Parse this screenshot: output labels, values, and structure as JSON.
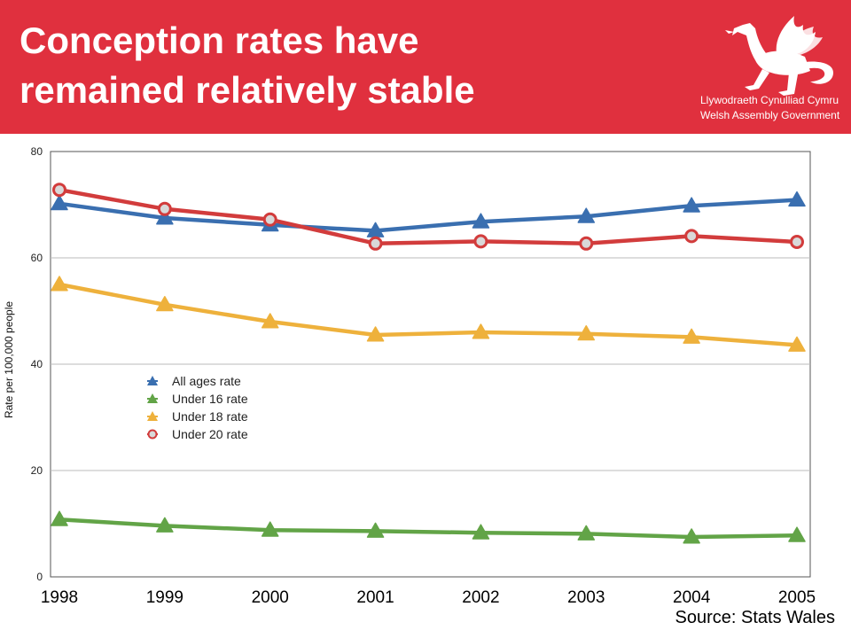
{
  "slide": {
    "title_line1": "Conception rates have",
    "title_line2": "remained relatively stable",
    "source": "Source: Stats Wales",
    "banner_color": "#e0303e"
  },
  "logo": {
    "line1": "Llywodraeth Cynulliad Cymru",
    "line2": "Welsh Assembly Government",
    "icon": "welsh-dragon-icon"
  },
  "chart_data": {
    "type": "line",
    "title": "",
    "xlabel": "",
    "ylabel": "Rate per 100,000 people",
    "categories": [
      "1998",
      "1999",
      "2000",
      "2001",
      "2002",
      "2003",
      "2004",
      "2005"
    ],
    "yticks": [
      "0",
      "20",
      "40",
      "60",
      "80"
    ],
    "ylim": [
      0,
      80
    ],
    "grid": true,
    "legend_position": "center-left",
    "series": [
      {
        "name": "All ages rate",
        "color": "#3a6fb0",
        "marker": "triangle",
        "values": [
          70.2,
          67.5,
          66.2,
          65.1,
          66.8,
          67.8,
          69.8,
          70.9
        ]
      },
      {
        "name": "Under 16 rate",
        "color": "#62a447",
        "marker": "triangle",
        "values": [
          10.8,
          9.6,
          8.8,
          8.6,
          8.3,
          8.1,
          7.5,
          7.8
        ]
      },
      {
        "name": "Under 18 rate",
        "color": "#eeb13c",
        "marker": "triangle",
        "values": [
          55.0,
          51.2,
          48.0,
          45.5,
          46.0,
          45.7,
          45.1,
          43.6
        ]
      },
      {
        "name": "Under 20 rate",
        "color": "#d23c3c",
        "marker": "circle",
        "values": [
          72.8,
          69.2,
          67.2,
          62.7,
          63.1,
          62.7,
          64.1,
          63.0
        ]
      }
    ]
  }
}
